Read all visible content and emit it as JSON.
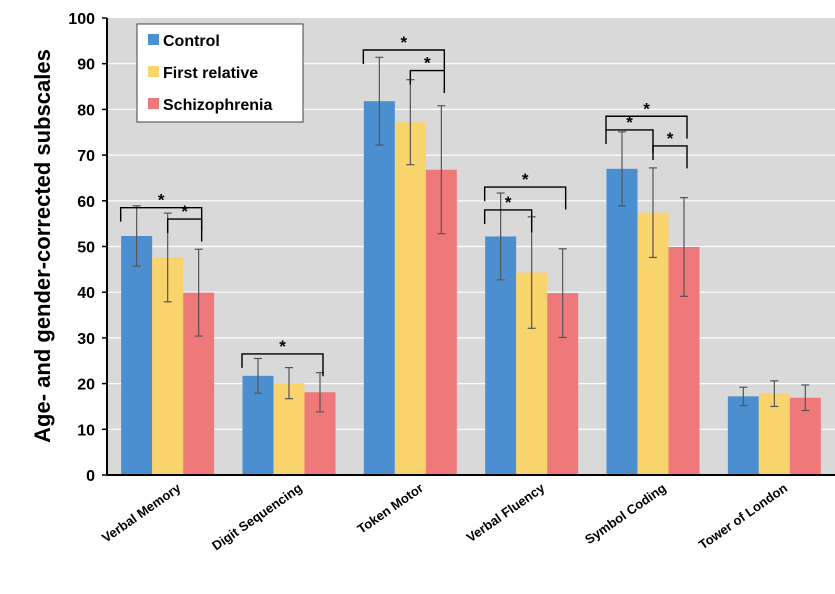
{
  "chart_data": {
    "type": "bar",
    "ylabel": "Age- and gender-corrected subscales",
    "ylim": [
      0,
      100
    ],
    "yticks": [
      0,
      10,
      20,
      30,
      40,
      50,
      60,
      70,
      80,
      90,
      100
    ],
    "grid": false,
    "legend_position": "top-left",
    "categories": [
      "Verbal Memory",
      "Digit Sequencing",
      "Token Motor",
      "Verbal Fluency",
      "Symbol Coding",
      "Tower of London"
    ],
    "series": [
      {
        "name": "Control",
        "color": "#4b8fd0",
        "values": [
          52.3,
          21.7,
          81.8,
          52.2,
          67.0,
          17.2
        ],
        "errors": [
          6.6,
          3.8,
          9.6,
          9.5,
          8.1,
          2.0
        ]
      },
      {
        "name": "First relative",
        "color": "#f9d36b",
        "values": [
          47.6,
          20.1,
          77.2,
          44.3,
          57.4,
          17.8
        ],
        "errors": [
          9.7,
          3.4,
          9.3,
          12.2,
          9.8,
          2.8
        ]
      },
      {
        "name": "Schizophrenia",
        "color": "#ef787a",
        "values": [
          39.9,
          18.1,
          66.8,
          39.8,
          49.9,
          16.9
        ],
        "errors": [
          9.5,
          4.3,
          14.0,
          9.7,
          10.8,
          2.8
        ]
      }
    ],
    "significance": [
      {
        "category": 0,
        "from": 0,
        "to": 2,
        "label": "*",
        "level": 58.5
      },
      {
        "category": 0,
        "from": 1,
        "to": 2,
        "label": "*",
        "level": 56.0
      },
      {
        "category": 1,
        "from": 0,
        "to": 2,
        "label": "*",
        "level": 26.5
      },
      {
        "category": 2,
        "from": 0,
        "to": 2,
        "label": "*",
        "level": 93.0
      },
      {
        "category": 2,
        "from": 1,
        "to": 2,
        "label": "*",
        "level": 88.5
      },
      {
        "category": 3,
        "from": 0,
        "to": 2,
        "label": "*",
        "level": 63.0
      },
      {
        "category": 3,
        "from": 0,
        "to": 1,
        "label": "*",
        "level": 58.0
      },
      {
        "category": 4,
        "from": 0,
        "to": 2,
        "label": "*",
        "level": 78.5
      },
      {
        "category": 4,
        "from": 0,
        "to": 1,
        "label": "*",
        "level": 75.5
      },
      {
        "category": 4,
        "from": 1,
        "to": 2,
        "label": "*",
        "level": 72.0
      }
    ]
  }
}
